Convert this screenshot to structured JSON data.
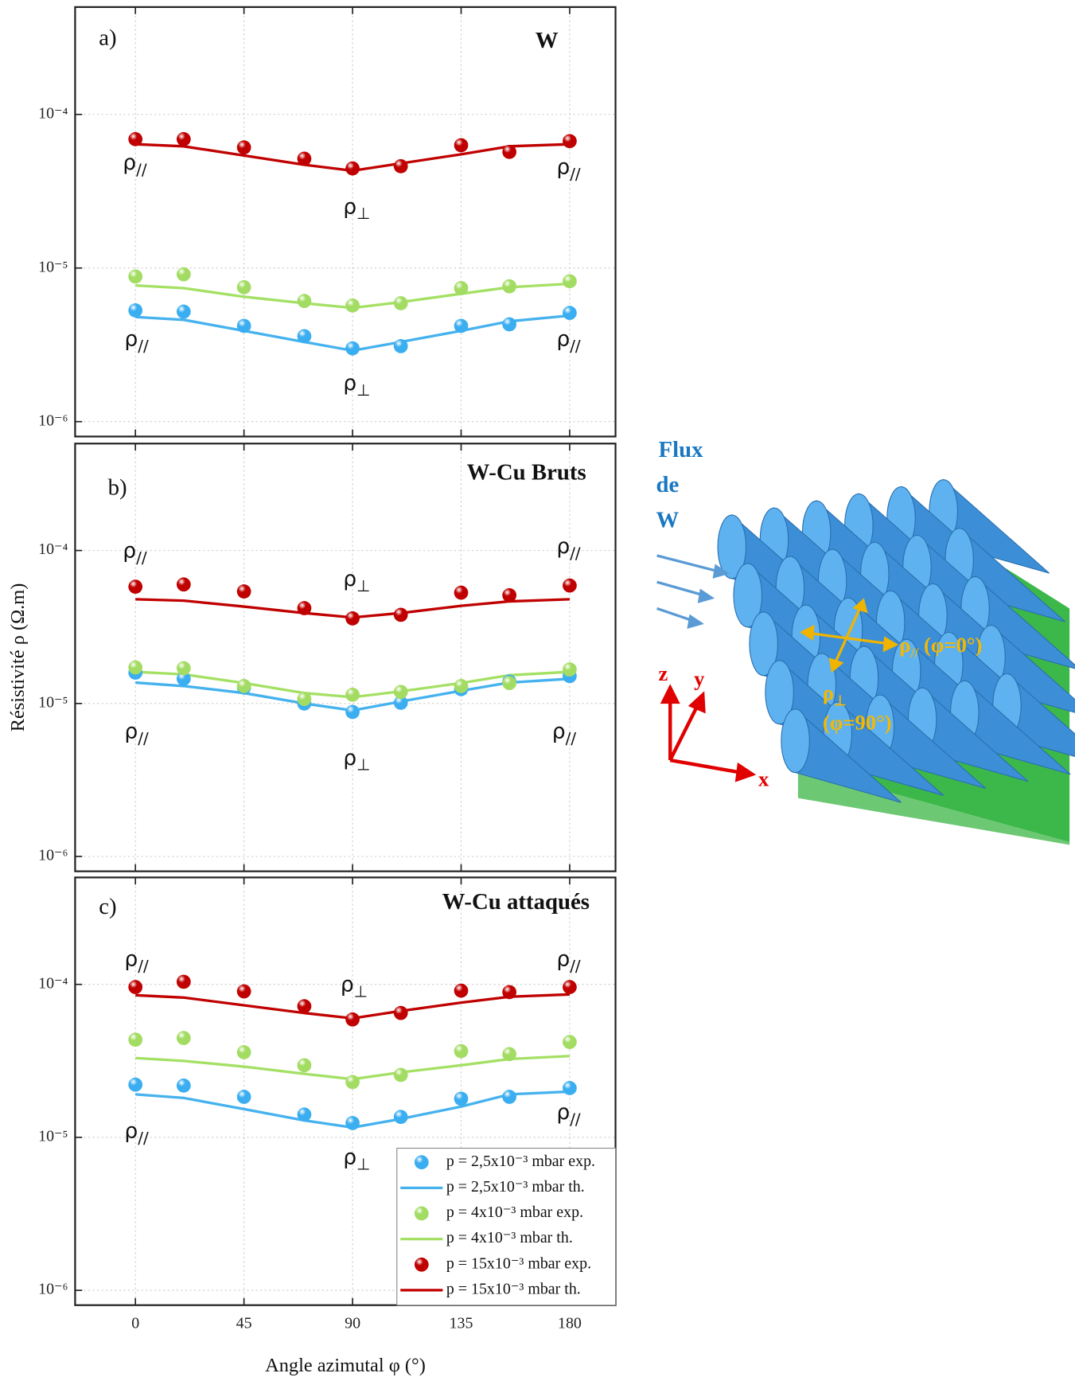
{
  "chart_data": [
    {
      "type": "line",
      "panel_label": "a)",
      "title": "W",
      "log_y": true,
      "grid": true,
      "show_xtick_labels": false,
      "x": [
        0,
        20,
        45,
        70,
        90,
        110,
        135,
        155,
        180
      ],
      "xlim": [
        -25,
        199
      ],
      "xticks": [
        0,
        45,
        90,
        135,
        180
      ],
      "ylim": [
        8e-07,
        0.0005
      ],
      "yticks": [
        {
          "value": 1e-06,
          "label": "10⁻⁶"
        },
        {
          "value": 1e-05,
          "label": "10⁻⁵"
        },
        {
          "value": 0.0001,
          "label": "10⁻⁴"
        }
      ],
      "series": [
        {
          "mode": "markers",
          "color": "#3aaef0",
          "values": [
            5.3e-06,
            5.2e-06,
            4.2e-06,
            3.6e-06,
            3e-06,
            3.1e-06,
            4.2e-06,
            4.3e-06,
            5.1e-06
          ]
        },
        {
          "mode": "line",
          "color": "#45b2ee",
          "values": [
            4.8e-06,
            4.6e-06,
            3.9e-06,
            3.3e-06,
            2.9e-06,
            3.3e-06,
            3.9e-06,
            4.5e-06,
            4.9e-06
          ]
        },
        {
          "mode": "markers",
          "color": "#a3dc62",
          "values": [
            8.8e-06,
            9.1e-06,
            7.5e-06,
            6.1e-06,
            5.7e-06,
            5.9e-06,
            7.4e-06,
            7.6e-06,
            8.2e-06
          ]
        },
        {
          "mode": "line",
          "color": "#a4e064",
          "values": [
            7.7e-06,
            7.4e-06,
            6.5e-06,
            5.9e-06,
            5.5e-06,
            6e-06,
            6.8e-06,
            7.5e-06,
            7.9e-06
          ]
        },
        {
          "mode": "markers",
          "color": "#c00000",
          "values": [
            6.9e-05,
            6.9e-05,
            6.1e-05,
            5.15e-05,
            4.45e-05,
            4.6e-05,
            6.3e-05,
            5.7e-05,
            6.7e-05
          ]
        },
        {
          "mode": "line",
          "color": "#c00000",
          "values": [
            6.4e-05,
            6.2e-05,
            5.4e-05,
            4.7e-05,
            4.3e-05,
            4.8e-05,
            5.5e-05,
            6.2e-05,
            6.4e-05
          ]
        }
      ],
      "annotations": [
        {
          "text": "ρ",
          "sub": "//"
        },
        {
          "text": "ρ",
          "sub": "//"
        },
        {
          "text": "ρ",
          "sub": "⊥"
        },
        {
          "text": "ρ",
          "sub": "//"
        },
        {
          "text": "ρ",
          "sub": "//"
        },
        {
          "text": "ρ",
          "sub": "⊥"
        }
      ]
    },
    {
      "type": "line",
      "panel_label": "b)",
      "title": "W-Cu Bruts",
      "ylabel": "Résistivité ρ (Ω.m)",
      "log_y": true,
      "grid": true,
      "show_xtick_labels": false,
      "x": [
        0,
        20,
        45,
        70,
        90,
        110,
        135,
        155,
        180
      ],
      "xlim": [
        -25,
        199
      ],
      "xticks": [
        0,
        45,
        90,
        135,
        180
      ],
      "ylim": [
        8e-07,
        0.0005
      ],
      "yticks": [
        {
          "value": 1e-06,
          "label": "10⁻⁶"
        },
        {
          "value": 1e-05,
          "label": "10⁻⁵"
        },
        {
          "value": 0.0001,
          "label": "10⁻⁴"
        }
      ],
      "series": [
        {
          "mode": "markers",
          "color": "#3aaef0",
          "values": [
            1.59e-05,
            1.45e-05,
            1.27e-05,
            1e-05,
            8.8e-06,
            1.01e-05,
            1.24e-05,
            1.39e-05,
            1.51e-05
          ]
        },
        {
          "mode": "line",
          "color": "#45b2ee",
          "values": [
            1.37e-05,
            1.3e-05,
            1.17e-05,
            1e-05,
            9e-06,
            1.03e-05,
            1.21e-05,
            1.37e-05,
            1.45e-05
          ]
        },
        {
          "mode": "markers",
          "color": "#a3dc62",
          "values": [
            1.72e-05,
            1.7e-05,
            1.3e-05,
            1.07e-05,
            1.14e-05,
            1.19e-05,
            1.3e-05,
            1.36e-05,
            1.67e-05
          ]
        },
        {
          "mode": "line",
          "color": "#a4e064",
          "values": [
            1.61e-05,
            1.55e-05,
            1.36e-05,
            1.17e-05,
            1.1e-05,
            1.2e-05,
            1.36e-05,
            1.53e-05,
            1.61e-05
          ]
        },
        {
          "mode": "markers",
          "color": "#c00000",
          "values": [
            5.8e-05,
            6e-05,
            5.4e-05,
            4.2e-05,
            3.6e-05,
            3.8e-05,
            5.3e-05,
            5.1e-05,
            5.9e-05
          ]
        },
        {
          "mode": "line",
          "color": "#c00000",
          "values": [
            4.8e-05,
            4.7e-05,
            4.3e-05,
            3.9e-05,
            3.65e-05,
            3.9e-05,
            4.35e-05,
            4.65e-05,
            4.8e-05
          ]
        }
      ],
      "annotations": [
        {
          "text": "ρ",
          "sub": "//"
        },
        {
          "text": "ρ",
          "sub": "//"
        },
        {
          "text": "ρ",
          "sub": "⊥"
        },
        {
          "text": "ρ",
          "sub": "//"
        },
        {
          "text": "ρ",
          "sub": "//"
        },
        {
          "text": "ρ",
          "sub": "⊥"
        }
      ]
    },
    {
      "type": "line",
      "panel_label": "c)",
      "title": "W-Cu attaqués",
      "xlabel": "Angle azimutal φ (°)",
      "log_y": true,
      "grid": true,
      "show_xtick_labels": true,
      "legend": "lower right",
      "x": [
        0,
        20,
        45,
        70,
        90,
        110,
        135,
        155,
        180
      ],
      "xlim": [
        -25,
        199
      ],
      "xticks": [
        0,
        45,
        90,
        135,
        180
      ],
      "ylim": [
        8e-07,
        0.0005
      ],
      "yticks": [
        {
          "value": 1e-06,
          "label": "10⁻⁶"
        },
        {
          "value": 1e-05,
          "label": "10⁻⁵"
        },
        {
          "value": 0.0001,
          "label": "10⁻⁴"
        }
      ],
      "series": [
        {
          "name": "p = 2,5x10⁻³ mbar exp.",
          "mode": "markers",
          "color": "#3aaef0",
          "values": [
            2.21e-05,
            2.18e-05,
            1.84e-05,
            1.41e-05,
            1.24e-05,
            1.36e-05,
            1.79e-05,
            1.84e-05,
            2.1e-05
          ]
        },
        {
          "name": "p = 2,5x10⁻³ mbar th.",
          "mode": "line",
          "color": "#45b2ee",
          "values": [
            1.91e-05,
            1.81e-05,
            1.53e-05,
            1.29e-05,
            1.16e-05,
            1.32e-05,
            1.59e-05,
            1.91e-05,
            1.99e-05
          ]
        },
        {
          "name": "p = 4x10⁻³ mbar  exp.",
          "mode": "markers",
          "color": "#a3dc62",
          "values": [
            4.35e-05,
            4.46e-05,
            3.6e-05,
            2.96e-05,
            2.3e-05,
            2.56e-05,
            3.66e-05,
            3.5e-05,
            4.2e-05
          ]
        },
        {
          "name": "p = 4x10⁻³ mbar  th.",
          "mode": "line",
          "color": "#a4e064",
          "values": [
            3.3e-05,
            3.16e-05,
            2.9e-05,
            2.6e-05,
            2.4e-05,
            2.66e-05,
            2.96e-05,
            3.25e-05,
            3.4e-05
          ]
        },
        {
          "name": "p = 15x10⁻³ mbar exp.",
          "mode": "markers",
          "color": "#c00000",
          "values": [
            9.6e-05,
            0.000104,
            9e-05,
            7.2e-05,
            5.9e-05,
            6.5e-05,
            9.1e-05,
            8.9e-05,
            9.6e-05
          ]
        },
        {
          "name": "p = 15x10⁻³ mbar th.",
          "mode": "line",
          "color": "#c00000",
          "values": [
            8.5e-05,
            8.2e-05,
            7.3e-05,
            6.5e-05,
            6e-05,
            6.7e-05,
            7.6e-05,
            8.3e-05,
            8.6e-05
          ]
        }
      ],
      "annotations": [
        {
          "text": "ρ",
          "sub": "//"
        },
        {
          "text": "ρ",
          "sub": "//"
        },
        {
          "text": "ρ",
          "sub": "⊥"
        },
        {
          "text": "ρ",
          "sub": "//"
        },
        {
          "text": "ρ",
          "sub": "//"
        },
        {
          "text": "ρ",
          "sub": "⊥"
        }
      ]
    }
  ],
  "diagram": {
    "flux": [
      "Flux",
      "de",
      "W"
    ],
    "axes": [
      "z",
      "y",
      "x"
    ],
    "labels": [
      {
        "text": "ρ",
        "sub": "//",
        "rest": " (φ=0°)"
      },
      {
        "text": "ρ",
        "sub": "⊥"
      },
      {
        "text": "(φ=90°)"
      }
    ]
  }
}
